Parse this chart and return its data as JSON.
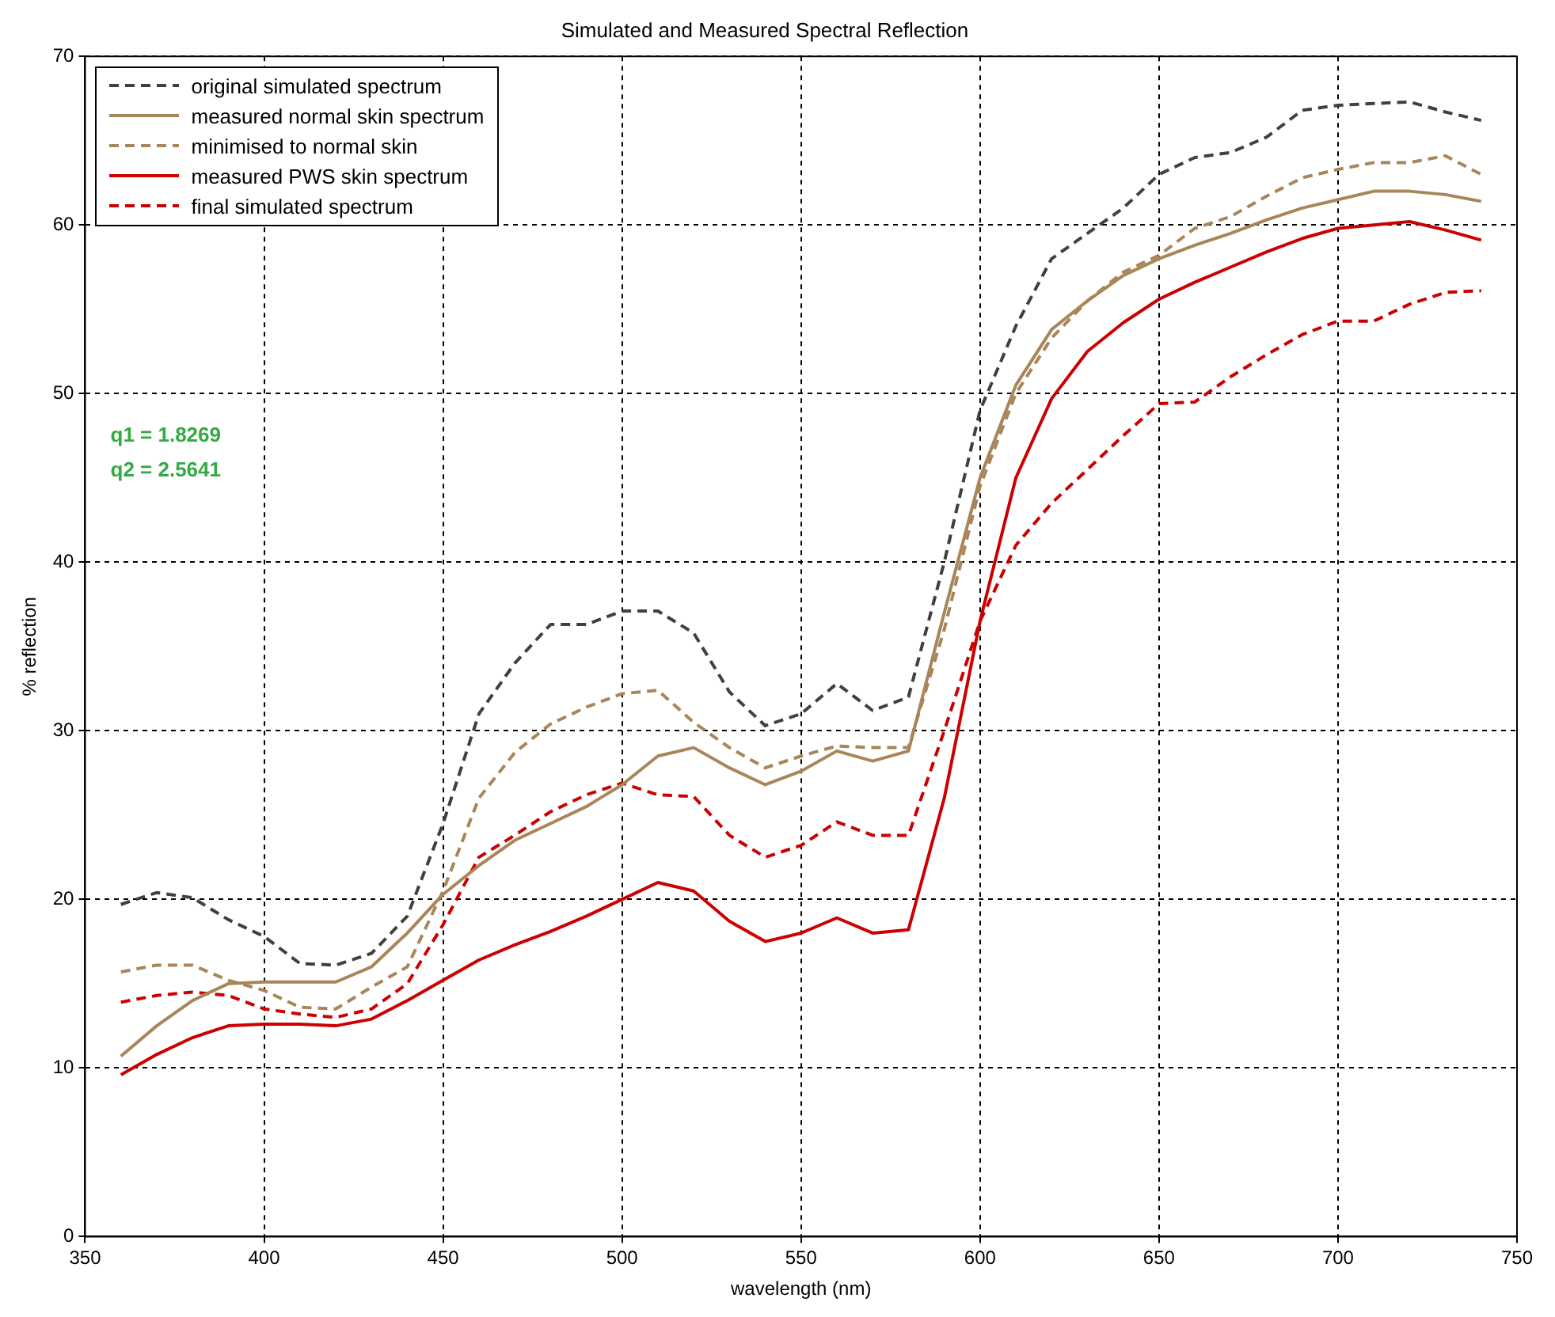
{
  "chart_data": {
    "type": "line",
    "title": "Simulated and Measured Spectral Reflection",
    "xlabel": "wavelength (nm)",
    "ylabel": "% reflection",
    "x": [
      360,
      370,
      380,
      390,
      400,
      410,
      420,
      430,
      440,
      450,
      460,
      470,
      480,
      490,
      500,
      510,
      520,
      530,
      540,
      550,
      560,
      570,
      580,
      590,
      600,
      610,
      620,
      630,
      640,
      650,
      660,
      670,
      680,
      690,
      700,
      710,
      720,
      730,
      740
    ],
    "series": [
      {
        "name": "original simulated spectrum",
        "color": "#404040",
        "line_style": "dashed",
        "values": [
          19.7,
          20.4,
          20.1,
          18.8,
          17.8,
          16.2,
          16.1,
          16.8,
          19,
          24.5,
          31,
          34,
          36.3,
          36.3,
          37.1,
          37.1,
          35.8,
          32.3,
          30.3,
          31,
          32.8,
          31.2,
          32,
          40,
          49,
          54,
          58,
          59.5,
          61,
          63,
          64,
          64.3,
          65.2,
          66.8,
          67.1,
          67.2,
          67.3,
          66.7,
          66.2
        ]
      },
      {
        "name": "measured normal skin spectrum",
        "color": "#a8865a",
        "line_style": "solid",
        "values": [
          10.7,
          12.5,
          14,
          15,
          15.1,
          15.1,
          15.1,
          16,
          18,
          20.3,
          22,
          23.5,
          24.5,
          25.5,
          26.8,
          28.5,
          29,
          27.8,
          26.8,
          27.6,
          28.8,
          28.2,
          28.8,
          37,
          45,
          50.5,
          53.8,
          55.5,
          57,
          58,
          58.8,
          59.5,
          60.3,
          61,
          61.5,
          62,
          62,
          61.8,
          61.4
        ]
      },
      {
        "name": "minimised to normal skin",
        "color": "#a8865a",
        "line_style": "dashed",
        "values": [
          15.7,
          16.1,
          16.1,
          15.2,
          14.6,
          13.6,
          13.5,
          14.8,
          16,
          20.5,
          26,
          28.7,
          30.4,
          31.4,
          32.2,
          32.4,
          30.5,
          29,
          27.8,
          28.5,
          29.1,
          29,
          29,
          36,
          44.5,
          50,
          53.3,
          55.5,
          57.2,
          58.2,
          59.8,
          60.5,
          61.7,
          62.8,
          63.3,
          63.7,
          63.7,
          64.1,
          63
        ]
      },
      {
        "name": "measured PWS skin spectrum",
        "color": "#cc0000",
        "line_style": "solid",
        "values": [
          9.6,
          10.8,
          11.8,
          12.5,
          12.6,
          12.6,
          12.5,
          12.9,
          14,
          15.2,
          16.4,
          17.3,
          18.1,
          19,
          20,
          21,
          20.5,
          18.7,
          17.5,
          18,
          18.9,
          18,
          18.2,
          26,
          36.5,
          45,
          49.7,
          52.5,
          54.2,
          55.6,
          56.6,
          57.5,
          58.4,
          59.2,
          59.8,
          60,
          60.2,
          59.7,
          59.1
        ]
      },
      {
        "name": "final simulated spectrum",
        "color": "#cc0000",
        "line_style": "dashed",
        "values": [
          13.9,
          14.3,
          14.5,
          14.3,
          13.5,
          13.2,
          13,
          13.5,
          15,
          18.5,
          22.5,
          23.8,
          25.2,
          26.2,
          26.9,
          26.2,
          26.1,
          23.8,
          22.5,
          23.2,
          24.6,
          23.8,
          23.8,
          30,
          36.5,
          41,
          43.5,
          45.5,
          47.5,
          49.4,
          49.5,
          51,
          52.3,
          53.5,
          54.3,
          54.3,
          55.3,
          56,
          56.1
        ]
      }
    ],
    "annotations": [
      "q1 = 1.8269",
      "q2 = 2.5641"
    ],
    "xlim": [
      350,
      750
    ],
    "xticks": [
      350,
      400,
      450,
      500,
      550,
      600,
      650,
      700,
      750
    ],
    "ylim": [
      0,
      70
    ],
    "yticks": [
      0,
      10,
      20,
      30,
      40,
      50,
      60,
      70
    ],
    "grid": true,
    "legend": "top left",
    "marker": "none"
  }
}
